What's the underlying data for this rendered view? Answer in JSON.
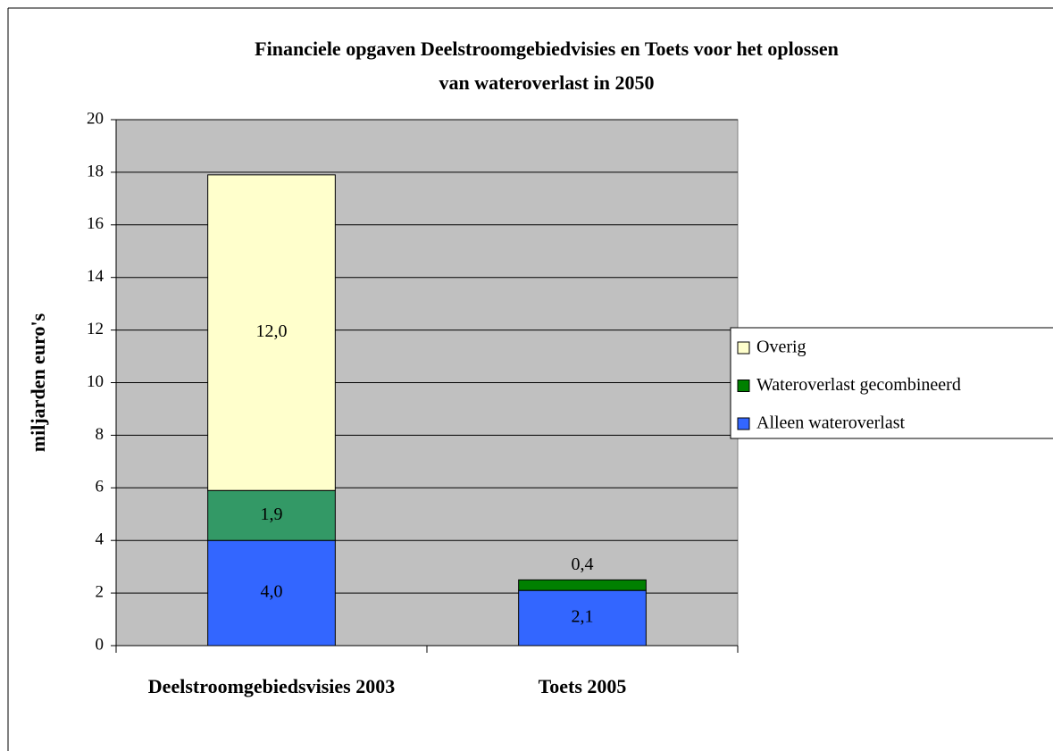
{
  "chart_data": {
    "type": "stacked-bar",
    "title": "Financiele opgaven Deelstroomgebiedvisies en Toets voor het oplossen van wateroverlast in 2050",
    "ylabel": "miljarden euro's",
    "categories": [
      "Deelstroomgebiedsvisies 2003",
      "Toets 2005"
    ],
    "series": [
      {
        "name": "Alleen wateroverlast",
        "color": "#3366ff",
        "colors": [
          "#3366ff",
          "#3366ff"
        ],
        "values": [
          4.0,
          2.1
        ],
        "value_labels": [
          "4,0",
          "2,1"
        ]
      },
      {
        "name": "Wateroverlast gecombineerd",
        "color": "#008000",
        "colors": [
          "#339966",
          "#008000"
        ],
        "values": [
          1.9,
          0.4
        ],
        "value_labels": [
          "1,9",
          "0,4"
        ]
      },
      {
        "name": "Overig",
        "color": "#ffffcc",
        "colors": [
          "#ffffcc",
          "#ffffcc"
        ],
        "values": [
          12.0,
          null
        ],
        "value_labels": [
          "12,0",
          null
        ]
      }
    ],
    "ylim": [
      0,
      20
    ],
    "yticks": [
      0,
      2,
      4,
      6,
      8,
      10,
      12,
      14,
      16,
      18,
      20
    ],
    "grid": true,
    "legend": "right"
  }
}
